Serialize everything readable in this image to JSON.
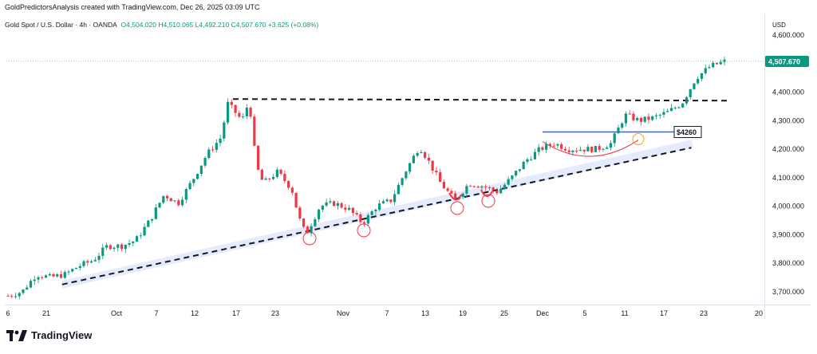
{
  "header": {
    "credit": "GoldPredictorsAnalysis created with TradingView.com, Dec 26, 2025 03:09 UTC"
  },
  "legend": {
    "symbol": "Gold Spot / U.S. Dollar · 4h · OANDA",
    "open": "O4,504.020",
    "high": "H4,510.065",
    "low": "L4,492.210",
    "close": "C4,507.670",
    "change": "+3.625 (+0.08%)"
  },
  "currency": "USD",
  "last_price_label": "4,507.670",
  "footer": {
    "brand": "TradingView"
  },
  "colors": {
    "up": "#089981",
    "down": "#f23645",
    "accent": "#2962ff",
    "trendband": "#e3e9fb"
  },
  "chart_data": {
    "type": "line",
    "title": "",
    "y_axis": {
      "ticks": [
        4600,
        4500,
        4400,
        4300,
        4200,
        4100,
        4000,
        3900,
        3800,
        3700
      ],
      "tick_labels": [
        "4,600.000",
        "4,500.000",
        "4,400.000",
        "4,300.000",
        "4,200.000",
        "4,100.000",
        "4,000.000",
        "3,900.000",
        "3,800.000",
        "3,700.000"
      ],
      "range": [
        3660,
        4640
      ]
    },
    "x_axis": {
      "tick_labels": [
        "6",
        "21",
        "Oct",
        "7",
        "12",
        "17",
        "23",
        "Nov",
        "7",
        "13",
        "19",
        "25",
        "Dec",
        "5",
        "11",
        "17",
        "23",
        "20"
      ]
    },
    "series": [
      {
        "values": [
          [
            "2025-09-16",
            3685
          ],
          [
            "2025-09-18",
            3700
          ],
          [
            "2025-09-20",
            3760
          ],
          [
            "2025-09-22",
            3750
          ],
          [
            "2025-09-24",
            3760
          ],
          [
            "2025-09-26",
            3790
          ],
          [
            "2025-09-28",
            3810
          ],
          [
            "2025-09-30",
            3860
          ],
          [
            "2025-10-02",
            3860
          ],
          [
            "2025-10-04",
            3880
          ],
          [
            "2025-10-06",
            3950
          ],
          [
            "2025-10-08",
            4040
          ],
          [
            "2025-10-10",
            4010
          ],
          [
            "2025-10-12",
            4090
          ],
          [
            "2025-10-14",
            4180
          ],
          [
            "2025-10-16",
            4240
          ],
          [
            "2025-10-17",
            4360
          ],
          [
            "2025-10-19",
            4300
          ],
          [
            "2025-10-20",
            4370
          ],
          [
            "2025-10-21",
            4140
          ],
          [
            "2025-10-22",
            4080
          ],
          [
            "2025-10-24",
            4120
          ],
          [
            "2025-10-26",
            4060
          ],
          [
            "2025-10-27",
            3960
          ],
          [
            "2025-10-28",
            3900
          ],
          [
            "2025-10-30",
            4000
          ],
          [
            "2025-11-01",
            4010
          ],
          [
            "2025-11-03",
            3990
          ],
          [
            "2025-11-05",
            3940
          ],
          [
            "2025-11-07",
            4000
          ],
          [
            "2025-11-09",
            4020
          ],
          [
            "2025-11-11",
            4120
          ],
          [
            "2025-11-13",
            4210
          ],
          [
            "2025-11-14",
            4170
          ],
          [
            "2025-11-16",
            4080
          ],
          [
            "2025-11-18",
            4020
          ],
          [
            "2025-11-20",
            4080
          ],
          [
            "2025-11-22",
            4070
          ],
          [
            "2025-11-24",
            4050
          ],
          [
            "2025-11-26",
            4100
          ],
          [
            "2025-11-28",
            4160
          ],
          [
            "2025-11-30",
            4200
          ],
          [
            "2025-12-02",
            4220
          ],
          [
            "2025-12-04",
            4200
          ],
          [
            "2025-12-06",
            4200
          ],
          [
            "2025-12-08",
            4200
          ],
          [
            "2025-12-10",
            4220
          ],
          [
            "2025-12-12",
            4320
          ],
          [
            "2025-12-14",
            4300
          ],
          [
            "2025-12-16",
            4310
          ],
          [
            "2025-12-18",
            4330
          ],
          [
            "2025-12-20",
            4360
          ],
          [
            "2025-12-22",
            4450
          ],
          [
            "2025-12-24",
            4490
          ],
          [
            "2025-12-26",
            4507.67
          ]
        ]
      }
    ],
    "annotations": {
      "price_label": "$4260",
      "resistance_level": 4370,
      "breakout_level": 4260,
      "trendline": [
        [
          "2025-09-24",
          3725
        ],
        [
          "2025-12-26",
          4205
        ]
      ]
    },
    "grid": false
  }
}
